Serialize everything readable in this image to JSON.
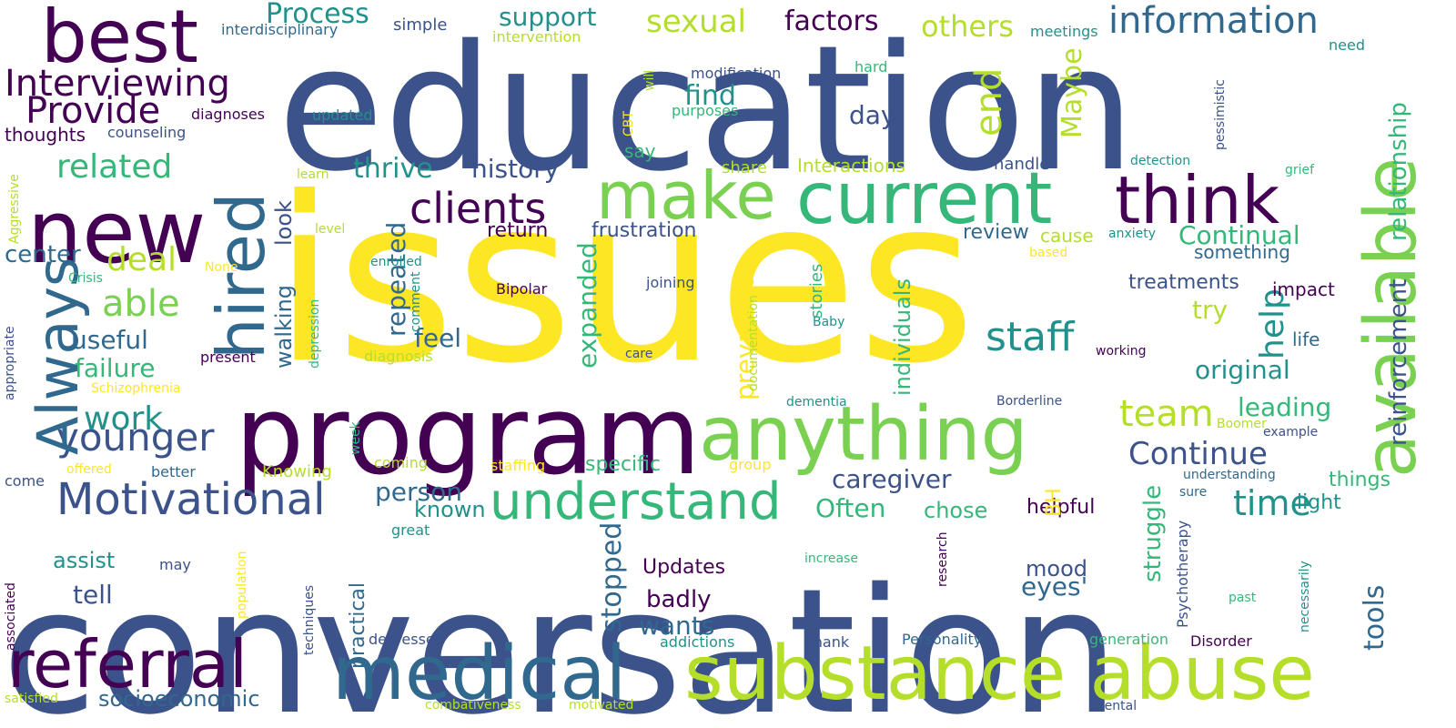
{
  "palette": {
    "background": "#ffffff",
    "dark_purple": "#440154",
    "indigo": "#3b528b",
    "blue": "#31688e",
    "teal": "#21918c",
    "green": "#35b779",
    "light_green": "#7ad151",
    "yellow_green": "#b5de2b",
    "yellow": "#fde725"
  },
  "words": [
    "issues",
    "conversation",
    "education",
    "program",
    "substance abuse",
    "medical",
    "referral",
    "available",
    "anything",
    "current",
    "new",
    "best",
    "make",
    "hired",
    "think",
    "understand",
    "Motivational",
    "information",
    "younger",
    "Always",
    "clients",
    "staff",
    "Interviewing",
    "Provide",
    "sexual",
    "Continue",
    "team",
    "time",
    "related",
    "factors",
    "others",
    "Process",
    "support",
    "able",
    "deal",
    "work",
    "history",
    "thrive",
    "relationship",
    "reinforcement",
    "help",
    "Continual",
    "end",
    "Maybe",
    "find",
    "day",
    "caregiver",
    "person",
    "known",
    "Often",
    "chose",
    "feel",
    "useful",
    "failure",
    "center",
    "socioeconomic",
    "assist",
    "tell",
    "mood",
    "eyes'",
    "wants",
    "badly",
    "Updates",
    "original",
    "leading",
    "try",
    "struggle",
    "tools",
    "stopped",
    "repeated",
    "expanded",
    "prevalent",
    "look",
    "walking",
    "individuals",
    "specific",
    "helpful",
    "light",
    "things",
    "frustration",
    "return",
    "review",
    "cause",
    "something",
    "treatments",
    "impact",
    "life",
    "practical",
    "BH",
    "share",
    "Interactions",
    "handle",
    "stories",
    "documentation",
    "detection",
    "grief",
    "anxiety",
    "based",
    "Bipolar",
    "joining",
    "depression",
    "comment",
    "enrolled",
    "diagnosis",
    "care",
    "working",
    "Schizophrenia",
    "present",
    "Baby",
    "Boomer",
    "example",
    "Borderline",
    "dementia",
    "understanding",
    "sure",
    "Psychotherapy",
    "necessarily",
    "past",
    "increase",
    "research",
    "Personality",
    "Disorder",
    "generation",
    "Thank",
    "addictions",
    "depressed",
    "techniques",
    "population",
    "may",
    "associated",
    "satisfied",
    "combativeness",
    "motivated",
    "mental",
    "appropriate",
    "Aggressive",
    "Crisis",
    "None",
    "level",
    "learn",
    "thoughts",
    "counseling",
    "diagnoses",
    "updated",
    "purposes",
    "CBT",
    "will",
    "modification",
    "hard",
    "need",
    "meetings",
    "intervention",
    "simple",
    "interdisciplinary",
    "pessimistic",
    "say",
    "come",
    "offered",
    "better",
    "week",
    "coming",
    "Knowing",
    "staffing",
    "group",
    "great"
  ]
}
